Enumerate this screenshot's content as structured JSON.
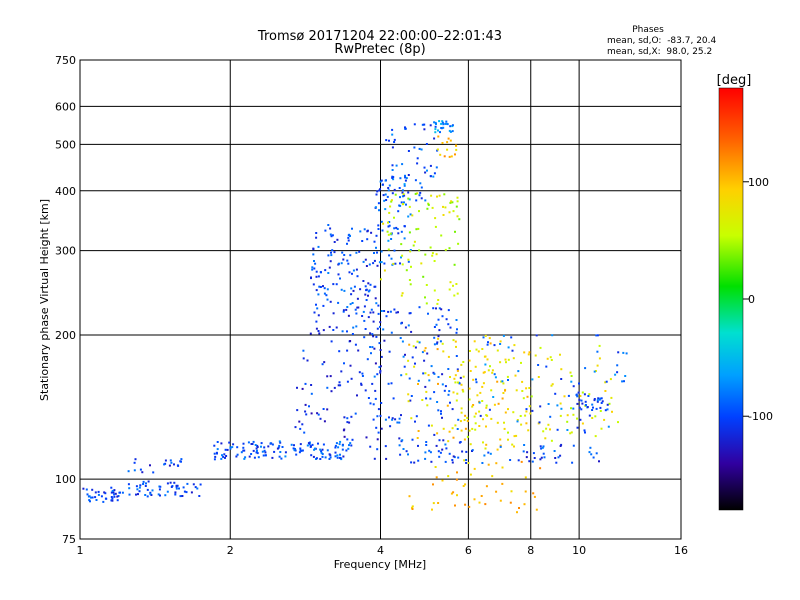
{
  "chart_data": {
    "type": "scatter",
    "title": "Tromsø 20171204 22:00:00–22:01:43",
    "subtitle": "RwPretec (8p)",
    "xlabel": "Frequency [MHz]",
    "ylabel": "Stationary phase Virtual Height [km]",
    "x_scale": "log",
    "y_scale": "log",
    "xlim": [
      1,
      16
    ],
    "ylim": [
      75,
      750
    ],
    "x_ticks": [
      1,
      2,
      4,
      6,
      8,
      10,
      16
    ],
    "y_ticks": [
      75,
      100,
      200,
      300,
      400,
      500,
      600,
      750
    ],
    "grid": true,
    "phase_stats": {
      "heading": "Phases",
      "line_o": "mean, sd,O:  -83.7, 20.4",
      "line_x": "mean, sd,X:  98.0, 25.2"
    },
    "colorbar": {
      "label": "[deg]",
      "range": [
        -180,
        180
      ],
      "ticks": [
        100,
        0,
        -100
      ],
      "tick_labels": [
        "100",
        "0",
        "-100"
      ]
    },
    "point_groups": [
      {
        "x_range": [
          1.0,
          1.2
        ],
        "y_range": [
          89,
          96
        ],
        "phase": -100,
        "count": 40
      },
      {
        "x_range": [
          1.2,
          1.75
        ],
        "y_range": [
          92,
          99
        ],
        "phase": -100,
        "count": 55
      },
      {
        "x_range": [
          1.25,
          1.6
        ],
        "y_range": [
          103,
          112
        ],
        "phase": -105,
        "count": 20
      },
      {
        "x_range": [
          1.85,
          3.5
        ],
        "y_range": [
          110,
          120
        ],
        "phase": -95,
        "count": 140
      },
      {
        "x_range": [
          2.9,
          4.0
        ],
        "y_range": [
          200,
          340
        ],
        "phase": -100,
        "count": 160
      },
      {
        "x_range": [
          3.9,
          4.6
        ],
        "y_range": [
          280,
          430
        ],
        "phase": -90,
        "count": 70
      },
      {
        "x_range": [
          4.1,
          5.2
        ],
        "y_range": [
          380,
          560
        ],
        "phase": -95,
        "count": 60
      },
      {
        "x_range": [
          5.1,
          5.6
        ],
        "y_range": [
          530,
          560
        ],
        "phase": -70,
        "count": 25
      },
      {
        "x_range": [
          5.2,
          5.7
        ],
        "y_range": [
          470,
          520
        ],
        "phase": 100,
        "count": 15
      },
      {
        "x_range": [
          2.7,
          4.2
        ],
        "y_range": [
          120,
          200
        ],
        "phase": -110,
        "count": 90
      },
      {
        "x_range": [
          3.8,
          5.8
        ],
        "y_range": [
          110,
          230
        ],
        "phase": -100,
        "count": 150
      },
      {
        "x_range": [
          4.0,
          5.8
        ],
        "y_range": [
          230,
          400
        ],
        "phase": 60,
        "count": 90
      },
      {
        "x_range": [
          4.5,
          8.0
        ],
        "y_range": [
          115,
          200
        ],
        "phase": 90,
        "count": 110
      },
      {
        "x_range": [
          5.5,
          12.0
        ],
        "y_range": [
          120,
          190
        ],
        "phase": 70,
        "count": 110
      },
      {
        "x_range": [
          6.0,
          12.5
        ],
        "y_range": [
          125,
          200
        ],
        "phase": -90,
        "count": 70
      },
      {
        "x_range": [
          4.5,
          8.5
        ],
        "y_range": [
          85,
          110
        ],
        "phase": 100,
        "count": 50
      },
      {
        "x_range": [
          9.8,
          11.5
        ],
        "y_range": [
          138,
          152
        ],
        "phase": -95,
        "count": 30
      },
      {
        "x_range": [
          4.5,
          11.0
        ],
        "y_range": [
          108,
          118
        ],
        "phase": -100,
        "count": 60
      }
    ]
  }
}
